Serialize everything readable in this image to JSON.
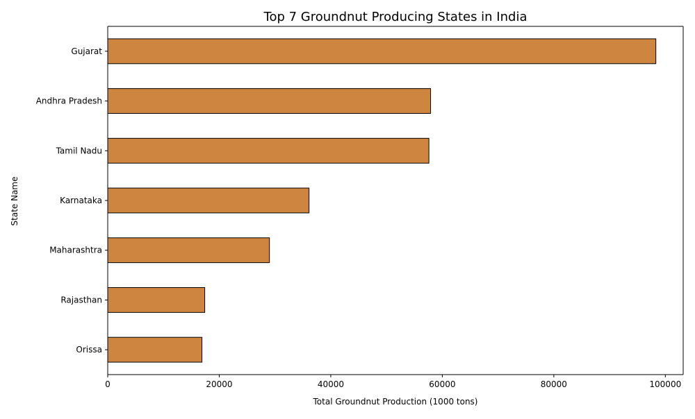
{
  "chart_data": {
    "type": "bar",
    "orientation": "horizontal",
    "title": "Top 7 Groundnut Producing States in India",
    "xlabel": "Total Groundnut Production (1000 tons)",
    "ylabel": "State Name",
    "categories": [
      "Gujarat",
      "Andhra Pradesh",
      "Tamil Nadu",
      "Karnataka",
      "Maharashtra",
      "Rajasthan",
      "Orissa"
    ],
    "values": [
      98300,
      57900,
      57600,
      36100,
      29000,
      17400,
      16900
    ],
    "xlim": [
      0,
      103200
    ],
    "xticks": [
      0,
      20000,
      40000,
      60000,
      80000,
      100000
    ],
    "xtick_labels": [
      "0",
      "20000",
      "40000",
      "60000",
      "80000",
      "100000"
    ],
    "bar_color": "#cd853f",
    "edge_color": "#000000",
    "grid": false,
    "legend": "none"
  }
}
